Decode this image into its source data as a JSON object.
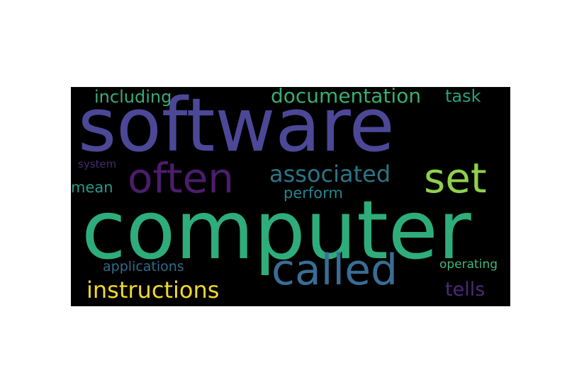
{
  "words": {
    "software": {
      "text": "software",
      "color": "#4c4897"
    },
    "computer": {
      "text": "computer",
      "color": "#2ead7b"
    },
    "often": {
      "text": "often",
      "color": "#4b1d6c"
    },
    "set": {
      "text": "set",
      "color": "#8ed14c"
    },
    "called": {
      "text": "called",
      "color": "#3a6d95"
    },
    "associated": {
      "text": "associated",
      "color": "#2c7486"
    },
    "instructions": {
      "text": "instructions",
      "color": "#f1d82a"
    },
    "documentation": {
      "text": "documentation",
      "color": "#39ad72"
    },
    "including": {
      "text": "including",
      "color": "#3aa97a"
    },
    "task": {
      "text": "task",
      "color": "#27a17c"
    },
    "mean": {
      "text": "mean",
      "color": "#27998a"
    },
    "perform": {
      "text": "perform",
      "color": "#26858d"
    },
    "system": {
      "text": "system",
      "color": "#462b6e"
    },
    "applications": {
      "text": "applications",
      "color": "#2f6b8d"
    },
    "operating": {
      "text": "operating",
      "color": "#40b77c"
    },
    "tells": {
      "text": "tells",
      "color": "#4b2a78"
    }
  }
}
